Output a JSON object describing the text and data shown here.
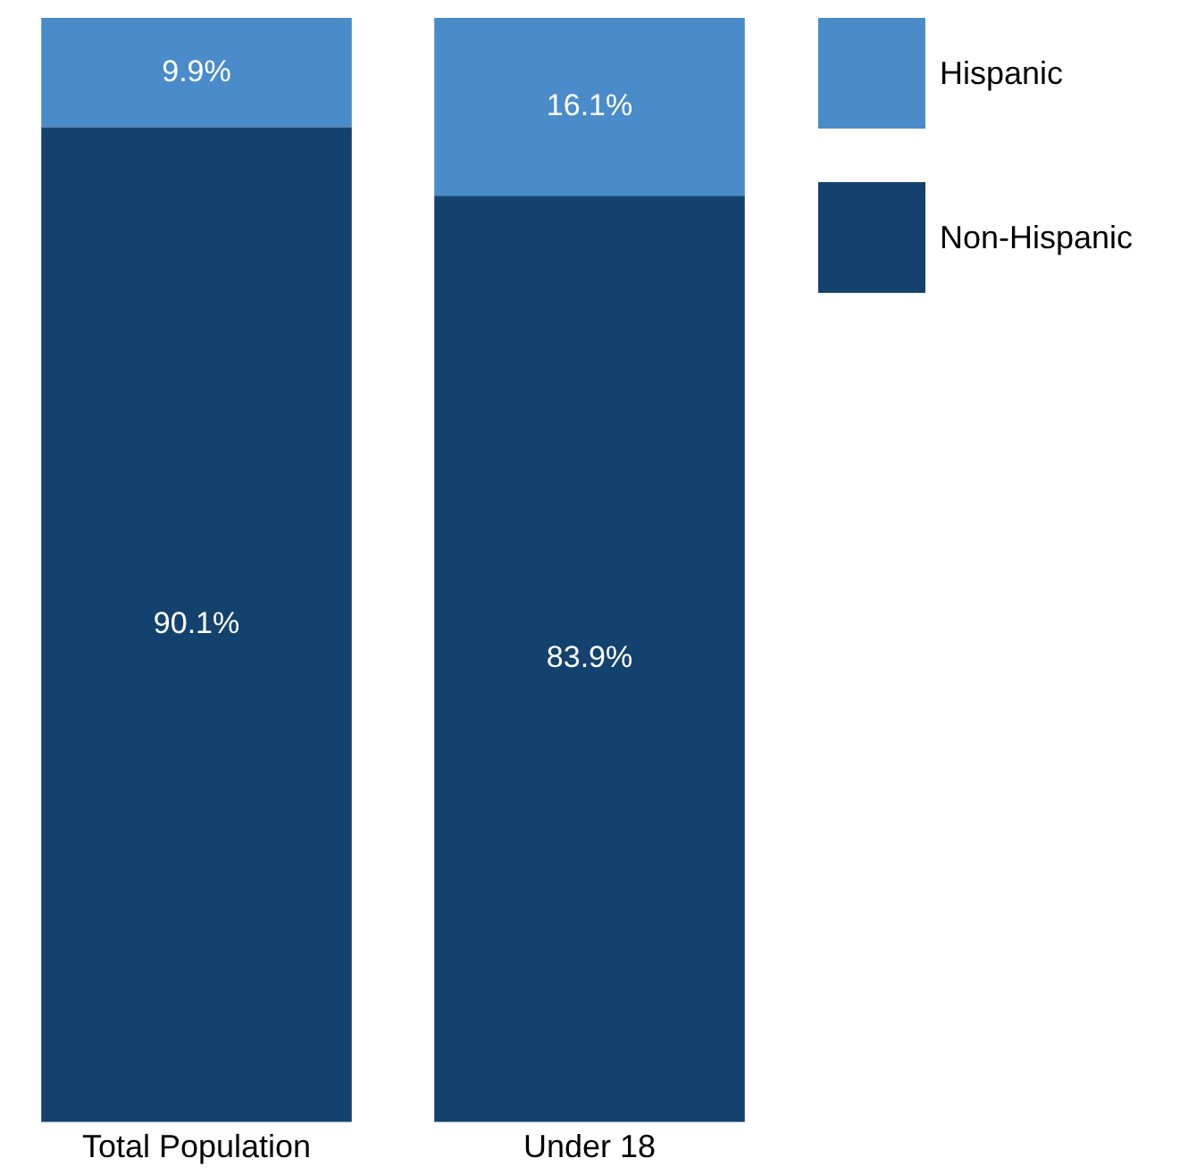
{
  "chart_data": {
    "type": "bar",
    "stacked": true,
    "categories": [
      "Total Population",
      "Under 18"
    ],
    "series": [
      {
        "name": "Non-Hispanic",
        "color": "#13426e",
        "values": [
          90.1,
          83.9
        ],
        "value_labels": [
          "90.1%",
          "83.9%"
        ]
      },
      {
        "name": "Hispanic",
        "color": "#4a8bc9",
        "values": [
          9.9,
          16.1
        ],
        "value_labels": [
          "9.9%",
          "16.1%"
        ]
      }
    ],
    "ylim": [
      0,
      100
    ],
    "tick_labels": "x",
    "legend": "top right"
  }
}
